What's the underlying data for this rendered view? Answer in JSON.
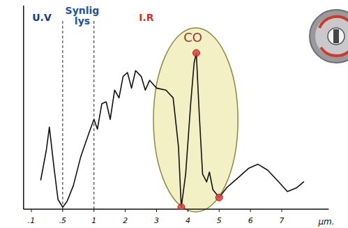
{
  "chart_data": {
    "type": "line",
    "x_label": "µm.",
    "xlim": [
      0,
      8.5
    ],
    "xticks": [
      {
        "value": 0.1,
        "label": ".1"
      },
      {
        "value": 0.5,
        "label": ".5"
      },
      1,
      2,
      3,
      4,
      5,
      6,
      7
    ],
    "ylim": [
      0,
      100
    ],
    "yticks": [],
    "tick_labels": "x",
    "grid": false,
    "regions": [
      {
        "text": "U.V",
        "color": "#1f3a7a"
      },
      {
        "text": "Synlig\nlys",
        "color": "#2255a0"
      },
      {
        "text": "I.R",
        "color": "#d03030"
      }
    ],
    "dividers": [
      0.5,
      1
    ],
    "highlight": {
      "text": "CO",
      "x": [
        2.9,
        5.6
      ],
      "color": "#f4f0c6"
    },
    "series": [
      {
        "type": "line",
        "color": "#111111",
        "x": [
          0.22,
          0.29,
          0.33,
          0.39,
          0.44,
          0.5,
          0.57,
          0.67,
          0.79,
          0.92,
          1.0,
          1.11,
          1.25,
          1.39,
          1.52,
          1.66,
          1.8,
          1.93,
          2.07,
          2.2,
          2.33,
          2.51,
          2.64,
          2.78,
          3.0,
          3.3,
          3.53,
          3.7,
          3.79,
          3.93,
          4.09,
          4.2,
          4.27,
          4.36,
          4.47,
          4.6,
          4.69,
          4.8,
          5.0,
          5.24,
          5.6,
          5.95,
          6.24,
          6.55,
          6.9,
          7.18,
          7.48,
          7.7
        ],
        "values": [
          15,
          30,
          42,
          21,
          5,
          1,
          4,
          12,
          27,
          39,
          46,
          41,
          54,
          55,
          46,
          61,
          57,
          68,
          70,
          62,
          71,
          68,
          61,
          66,
          62,
          61,
          57,
          32,
          1,
          18,
          54,
          75,
          80,
          50,
          18,
          14,
          19,
          10,
          6,
          11,
          16,
          21,
          23,
          20,
          14,
          9,
          11,
          14
        ]
      },
      {
        "type": "scatter",
        "color": "#e04040",
        "marker": "circle",
        "x": [
          3.79,
          4.27,
          5.0
        ],
        "values": [
          1,
          80,
          6
        ]
      }
    ]
  }
}
